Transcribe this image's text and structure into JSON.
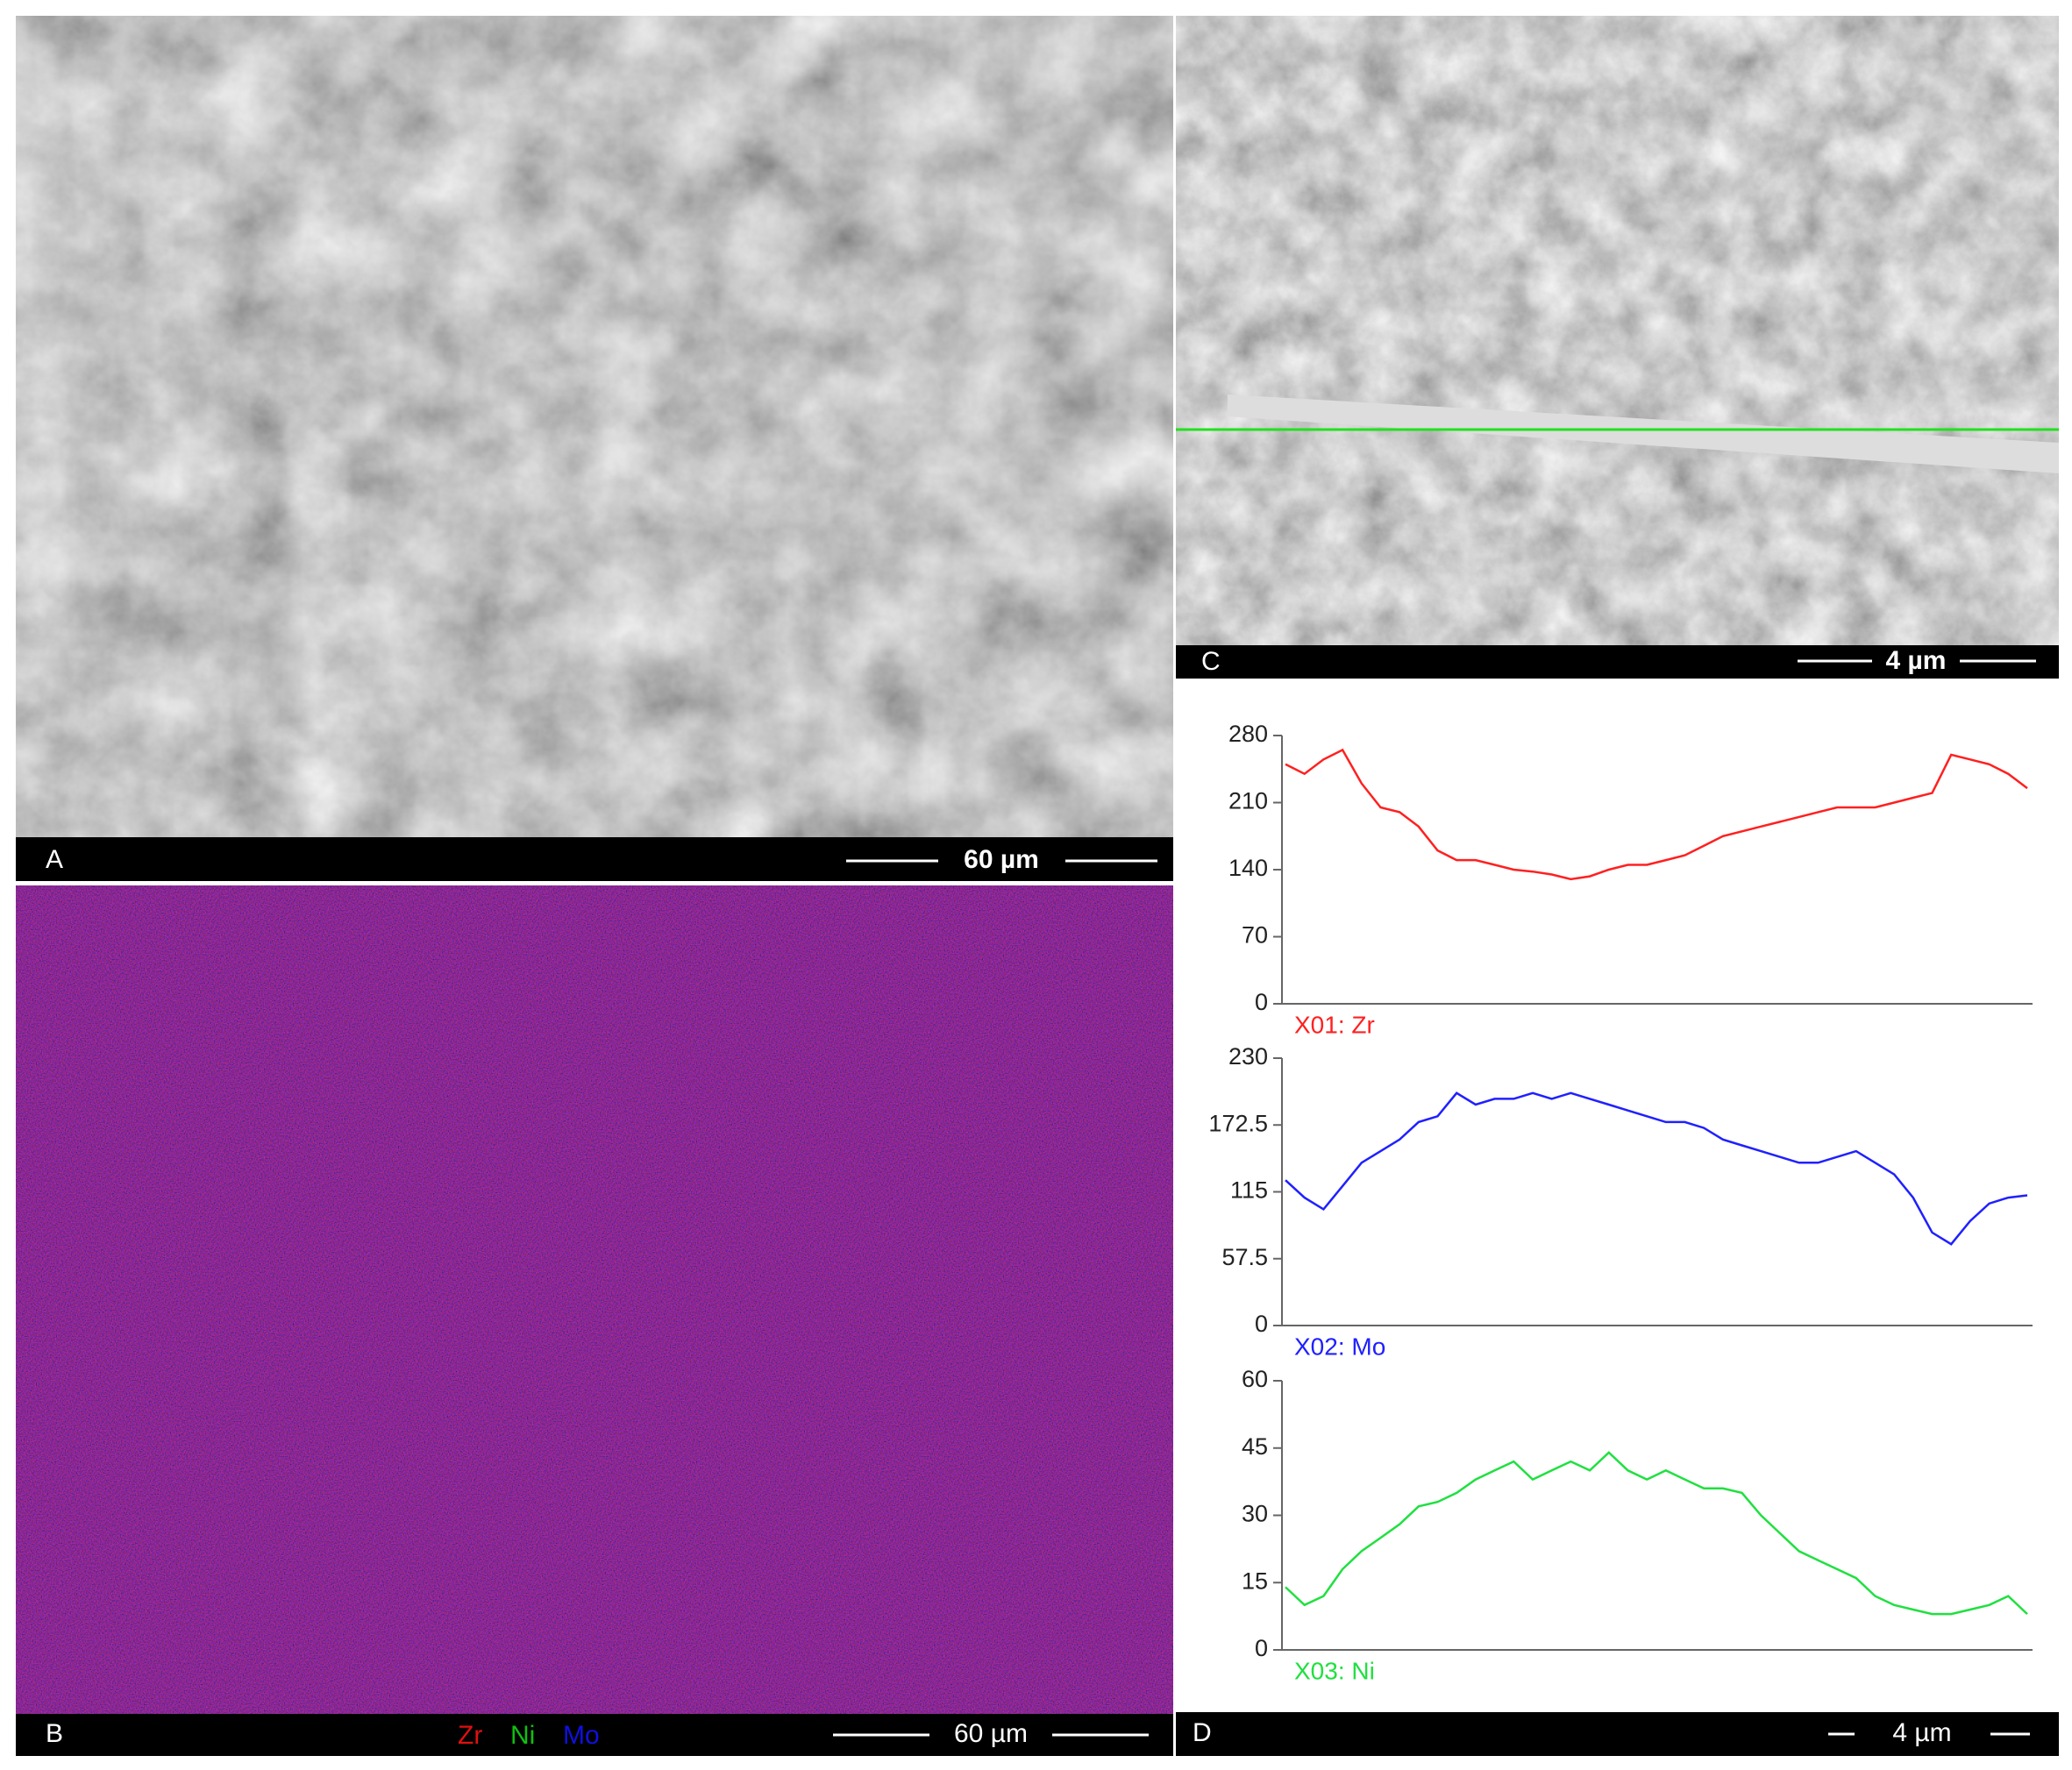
{
  "panels": {
    "a": {
      "label": "A",
      "scale_bar": "60 µm"
    },
    "b": {
      "label": "B",
      "scale_bar": "60 µm",
      "legend": [
        {
          "name": "Zr",
          "color": "#e01010"
        },
        {
          "name": "Ni",
          "color": "#10c010"
        },
        {
          "name": "Mo",
          "color": "#1010e0"
        }
      ]
    },
    "c": {
      "label": "C",
      "scale_bar": "4 µm"
    },
    "d": {
      "label": "D",
      "scale_bar": "4 µm"
    }
  },
  "chart_data": [
    {
      "type": "line",
      "series": [
        {
          "name": "X01: Zr",
          "color": "#ff2020",
          "values": [
            250,
            240,
            255,
            265,
            230,
            205,
            200,
            185,
            160,
            150,
            150,
            145,
            140,
            138,
            135,
            130,
            133,
            140,
            145,
            145,
            150,
            155,
            165,
            175,
            180,
            185,
            190,
            195,
            200,
            205,
            205,
            205,
            210,
            215,
            220,
            260,
            255,
            250,
            240,
            225
          ]
        }
      ],
      "ylim": [
        0,
        280
      ],
      "yticks": [
        0,
        70,
        140,
        210,
        280
      ]
    },
    {
      "type": "line",
      "series": [
        {
          "name": "X02: Mo",
          "color": "#2020ff",
          "values": [
            125,
            110,
            100,
            120,
            140,
            150,
            160,
            175,
            180,
            200,
            190,
            195,
            195,
            200,
            195,
            200,
            195,
            190,
            185,
            180,
            175,
            175,
            170,
            160,
            155,
            150,
            145,
            140,
            140,
            145,
            150,
            140,
            130,
            110,
            80,
            70,
            90,
            105,
            110,
            112
          ]
        }
      ],
      "ylim": [
        0,
        230
      ],
      "yticks": [
        0,
        57.5,
        115,
        172.5,
        230
      ]
    },
    {
      "type": "line",
      "series": [
        {
          "name": "X03: Ni",
          "color": "#20e040",
          "values": [
            14,
            10,
            12,
            18,
            22,
            25,
            28,
            32,
            33,
            35,
            38,
            40,
            42,
            38,
            40,
            42,
            40,
            44,
            40,
            38,
            40,
            38,
            36,
            36,
            35,
            30,
            26,
            22,
            20,
            18,
            16,
            12,
            10,
            9,
            8,
            8,
            9,
            10,
            12,
            8
          ]
        }
      ],
      "ylim": [
        0,
        60
      ],
      "yticks": [
        0,
        15,
        30,
        45,
        60
      ]
    }
  ]
}
